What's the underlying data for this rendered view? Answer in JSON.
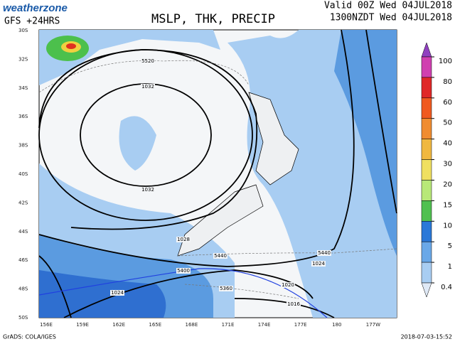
{
  "header": {
    "logo": "weatherzone",
    "model": "GFS +24HRS",
    "title": "MSLP, THK, PRECIP",
    "valid": "Valid 00Z Wed 04JUL2018",
    "local": "1300NZDT Wed 04JUL2018"
  },
  "map": {
    "latitudes": [
      "30S",
      "32S",
      "34S",
      "36S",
      "38S",
      "40S",
      "42S",
      "44S",
      "46S",
      "48S",
      "50S"
    ],
    "longitudes": [
      "156E",
      "159E",
      "162E",
      "165E",
      "168E",
      "171E",
      "174E",
      "177E",
      "180",
      "177W"
    ],
    "contour_labels": [
      "5520",
      "1032",
      "1032",
      "1028",
      "5440",
      "5440",
      "1024",
      "5400",
      "1020",
      "5360",
      "1024",
      "1016"
    ]
  },
  "colorbar": {
    "labels": [
      "100",
      "80",
      "60",
      "50",
      "40",
      "30",
      "20",
      "15",
      "10",
      "5",
      "1",
      "0.4"
    ]
  },
  "footer": {
    "left": "GrADS: COLA/IGES",
    "right": "2018-07-03-15:52"
  }
}
